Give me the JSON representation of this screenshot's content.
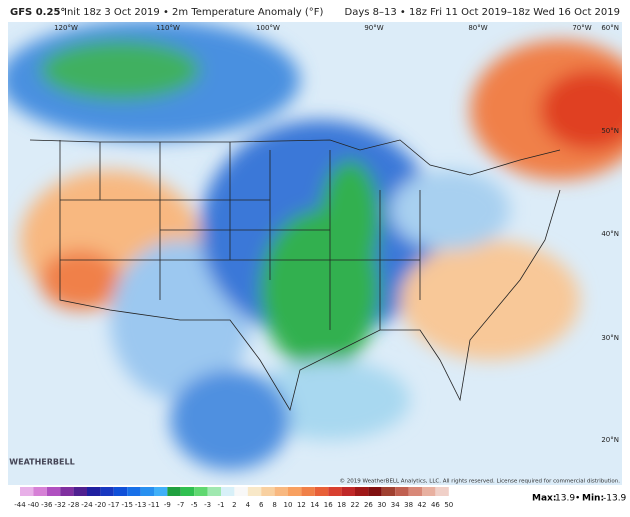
{
  "header": {
    "model": "GFS 0.25°",
    "init": "Init 18z 3 Oct 2019 • 2m Temperature Anomaly (°F)",
    "valid": "Days 8–13 • 18z Fri 11 Oct 2019–18z Wed 16 Oct 2019"
  },
  "map": {
    "lon_labels": [
      "120°W",
      "110°W",
      "100°W",
      "90°W",
      "80°W",
      "70°W"
    ],
    "lat_labels": [
      "60°N",
      "50°N",
      "40°N",
      "30°N",
      "20°N"
    ],
    "logo": "WEATHERBELL",
    "copyright": "© 2019 WeatherBELL Analytics, LLC. All rights reserved. License required for commercial distribution."
  },
  "colorbar": {
    "ticks": [
      -44,
      -40,
      -36,
      -32,
      -28,
      -24,
      -20,
      -17,
      -15,
      -13,
      -11,
      -9,
      -7,
      -5,
      -3,
      -1,
      2,
      4,
      6,
      8,
      10,
      12,
      14,
      16,
      18,
      22,
      26,
      30,
      34,
      38,
      42,
      46,
      50
    ],
    "colors": [
      "#e8b0e8",
      "#d680d6",
      "#b050c0",
      "#8030a0",
      "#502090",
      "#2020a0",
      "#1838c0",
      "#1050d8",
      "#1870e8",
      "#2890f0",
      "#40b0f8",
      "#20a040",
      "#30c050",
      "#60d870",
      "#a0e8b0",
      "#d8f0f8",
      "#f8f8f8",
      "#f8e8c8",
      "#f8d0a0",
      "#f8b880",
      "#f8a060",
      "#f08048",
      "#e86038",
      "#d84030",
      "#c02828",
      "#a01818",
      "#801010",
      "#a04030",
      "#c06050",
      "#d88878",
      "#e8b0a0",
      "#f0d0c8"
    ],
    "max_label": "Max:",
    "max": 13.9,
    "min_label": "Min:",
    "min": -13.9
  }
}
